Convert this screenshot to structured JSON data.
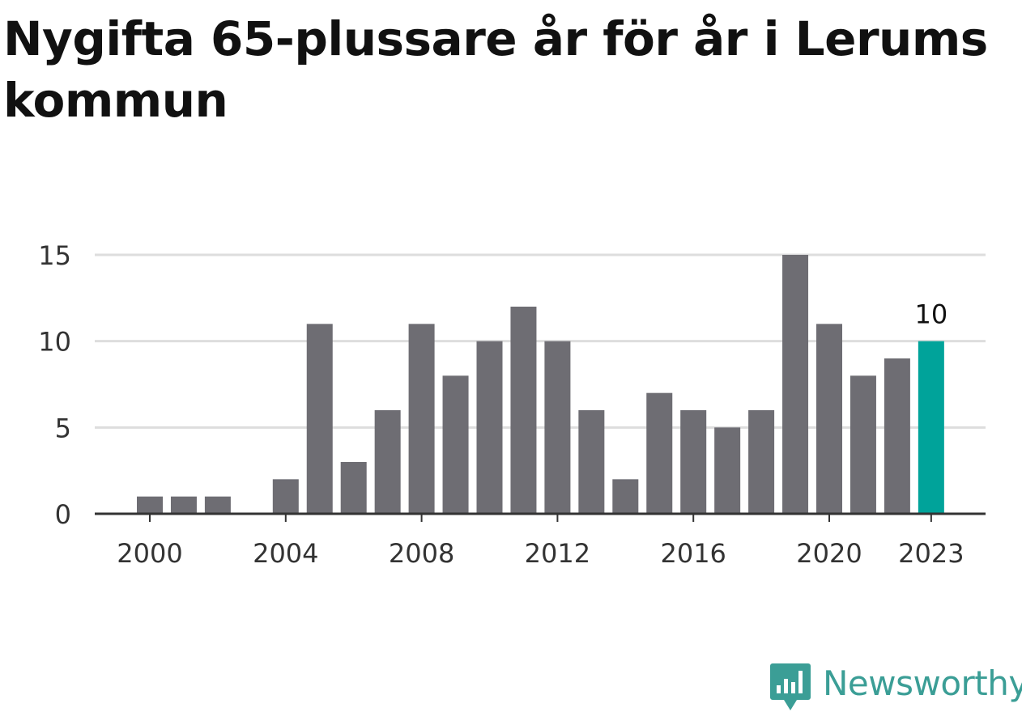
{
  "chart_data": {
    "type": "bar",
    "title": "Nygifta 65-plussare år för år i Lerums kommun",
    "xlabel": "",
    "ylabel": "",
    "categories": [
      2000,
      2001,
      2002,
      2003,
      2004,
      2005,
      2006,
      2007,
      2008,
      2009,
      2010,
      2011,
      2012,
      2013,
      2014,
      2015,
      2016,
      2017,
      2018,
      2019,
      2020,
      2021,
      2022,
      2023
    ],
    "values": [
      1,
      1,
      1,
      0,
      2,
      11,
      3,
      6,
      11,
      8,
      10,
      12,
      10,
      6,
      2,
      7,
      6,
      5,
      6,
      15,
      11,
      8,
      9,
      10
    ],
    "x_ticks": [
      "2000",
      "2004",
      "2008",
      "2012",
      "2016",
      "2020",
      "2023"
    ],
    "y_ticks": [
      "0",
      "5",
      "10",
      "15"
    ],
    "ylim": [
      0,
      15
    ],
    "grid": true,
    "highlight": {
      "category": 2023,
      "label": "10"
    },
    "colors": {
      "bar": "#6e6d73",
      "highlight": "#00a39a",
      "grid": "#dddddd",
      "axis": "#333333",
      "text": "#333333"
    }
  },
  "brand": {
    "name": "Newsworthy",
    "icon": "newsworthy-logo-icon",
    "color": "#3b9e96"
  }
}
